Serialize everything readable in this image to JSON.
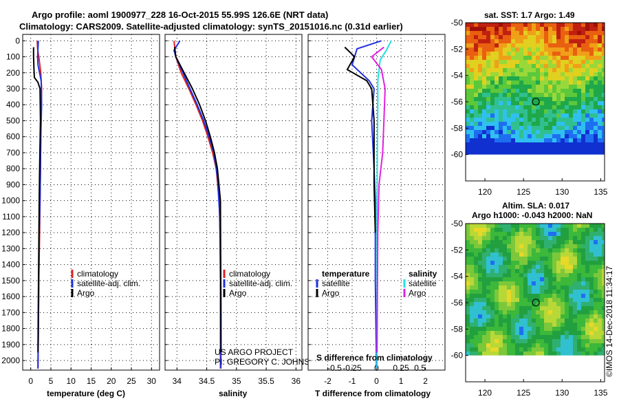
{
  "title_line1": "Argo profile: aoml 1900977_228 16-Oct-2015 55.99S 126.6E (NRT data)",
  "title_line2": "Climatology: CARS2009. Satellite-adjusted climatology: synTS_20151016.nc (0.31d earlier)",
  "credit_line1": "US ARGO PROJECT",
  "credit_line2": "PI: GREGORY C. JOHNSON",
  "watermark": "©IMOS 14-Dec-2018 11:34:17",
  "colors": {
    "climatology": "#e02020",
    "satellite": "#1f2fe0",
    "argo": "#000000",
    "salinity_sat": "#22e0e0",
    "salinity_argo": "#e020e0"
  },
  "chart_data": [
    {
      "type": "line",
      "name": "temperature-profile",
      "xlabel": "temperature (deg C)",
      "ylabel": "",
      "xlim": [
        -2,
        32
      ],
      "ylim": [
        2060,
        -40
      ],
      "xticks": [
        0,
        5,
        10,
        15,
        20,
        25,
        30
      ],
      "yticks": [
        0,
        100,
        200,
        300,
        400,
        500,
        600,
        700,
        800,
        900,
        1000,
        1100,
        1200,
        1300,
        1400,
        1500,
        1600,
        1700,
        1800,
        1900,
        2000
      ],
      "legend": [
        "climatology",
        "satellite-adj. clim.",
        "Argo"
      ],
      "series": [
        {
          "name": "climatology",
          "color": "#e02020",
          "x": [
            1.6,
            1.7,
            2.0,
            2.5,
            2.7,
            2.6,
            2.5,
            2.4,
            2.3,
            2.2,
            2.0,
            1.9,
            1.8
          ],
          "y": [
            0,
            50,
            100,
            200,
            300,
            400,
            600,
            800,
            1000,
            1200,
            1500,
            1800,
            2050
          ]
        },
        {
          "name": "satellite-adj. clim.",
          "color": "#1f2fe0",
          "x": [
            1.9,
            1.8,
            1.7,
            1.8,
            2.6,
            2.7,
            2.5,
            2.4,
            2.3,
            2.1,
            2.0,
            1.9,
            1.8
          ],
          "y": [
            0,
            50,
            100,
            150,
            250,
            400,
            600,
            800,
            1000,
            1200,
            1500,
            1800,
            2050
          ]
        },
        {
          "name": "Argo",
          "color": "#000000",
          "x": [
            0.7,
            0.7,
            0.8,
            0.9,
            1.8,
            2.3,
            2.4,
            2.2,
            2.1,
            2.0,
            1.9,
            1.8
          ],
          "y": [
            40,
            100,
            180,
            230,
            260,
            300,
            500,
            800,
            1000,
            1300,
            1600,
            1950
          ]
        }
      ]
    },
    {
      "type": "line",
      "name": "salinity-profile",
      "xlabel": "salinity",
      "xlim": [
        33.8,
        36.1
      ],
      "ylim": [
        2060,
        -40
      ],
      "xticks": [
        34,
        34.5,
        35,
        35.5,
        36
      ],
      "legend": [
        "climatology",
        "satellite-adj. clim.",
        "Argo"
      ],
      "series": [
        {
          "name": "climatology",
          "color": "#e02020",
          "x": [
            33.95,
            33.98,
            34.07,
            34.2,
            34.32,
            34.43,
            34.52,
            34.6,
            34.66,
            34.71,
            34.73,
            34.74,
            34.74
          ],
          "y": [
            0,
            100,
            200,
            300,
            400,
            500,
            600,
            700,
            800,
            1000,
            1300,
            1600,
            2050
          ]
        },
        {
          "name": "satellite-adj. clim.",
          "color": "#1f2fe0",
          "x": [
            34.05,
            33.95,
            33.98,
            34.1,
            34.22,
            34.34,
            34.45,
            34.54,
            34.62,
            34.68,
            34.72,
            34.73,
            34.73
          ],
          "y": [
            0,
            60,
            100,
            200,
            300,
            400,
            500,
            600,
            700,
            850,
            1100,
            1500,
            2050
          ]
        },
        {
          "name": "Argo",
          "color": "#000000",
          "x": [
            33.96,
            33.98,
            34.12,
            34.26,
            34.38,
            34.48,
            34.56,
            34.63,
            34.68,
            34.73,
            34.74
          ],
          "y": [
            40,
            100,
            200,
            300,
            400,
            500,
            600,
            700,
            800,
            1000,
            1950
          ]
        }
      ]
    },
    {
      "type": "line",
      "name": "difference-profile",
      "xlabel": "T difference from climatology",
      "x2label": "S difference from climatology",
      "xlim": [
        -2.8,
        2.8
      ],
      "ylim": [
        2060,
        -40
      ],
      "xticks": [
        -2,
        -1,
        0,
        1,
        2
      ],
      "x2ticks": [
        "-0.5",
        "-0.25",
        "0",
        "0.25",
        "0.5"
      ],
      "legend_headers": [
        "temperature",
        "salinity"
      ],
      "legend": [
        "satellite",
        "Argo",
        "satellite",
        "Argo"
      ],
      "series": [
        {
          "name": "temperature satellite",
          "color": "#1f2fe0",
          "x": [
            0.2,
            -0.8,
            -1.0,
            -0.3,
            -0.1,
            -0.2,
            -0.1,
            -0.05,
            -0.05,
            0.0
          ],
          "y": [
            0,
            50,
            150,
            250,
            300,
            500,
            800,
            1000,
            1500,
            2050
          ]
        },
        {
          "name": "temperature Argo",
          "color": "#000000",
          "x": [
            -1.3,
            -0.9,
            -1.2,
            -0.4,
            -0.2,
            -0.1,
            -0.1,
            -0.05
          ],
          "y": [
            40,
            100,
            180,
            250,
            300,
            500,
            900,
            1200
          ]
        },
        {
          "name": "salinity satellite",
          "color": "#22e0e0",
          "x": [
            0.6,
            0.4,
            0.15,
            0.05,
            0.05,
            0.03,
            0.02,
            0.02
          ],
          "y": [
            0,
            60,
            120,
            250,
            400,
            700,
            1000,
            2050
          ]
        },
        {
          "name": "salinity Argo",
          "color": "#e020e0",
          "x": [
            0.3,
            -0.2,
            0.2,
            0.35,
            0.3,
            0.25,
            0.1,
            0.05,
            0.02
          ],
          "y": [
            40,
            100,
            180,
            300,
            500,
            700,
            900,
            1200,
            1950
          ]
        }
      ]
    },
    {
      "type": "heatmap",
      "name": "sst-map",
      "title": "sat. SST: 1.7 Argo: 1.49",
      "xlim": [
        117.5,
        135.5
      ],
      "ylim": [
        -62,
        -50
      ],
      "xticks": [
        120,
        125,
        130,
        135
      ],
      "yticks": [
        -50,
        -52,
        -54,
        -56,
        -58,
        -60
      ],
      "marker": {
        "lon": 126.6,
        "lat": -55.99
      }
    },
    {
      "type": "heatmap",
      "name": "sla-map",
      "title_line1": "Altim. SLA: 0.017",
      "title_line2": "Argo h1000: -0.043 h2000: NaN",
      "xlim": [
        117.5,
        135.5
      ],
      "ylim": [
        -62,
        -50
      ],
      "xticks": [
        120,
        125,
        130,
        135
      ],
      "yticks": [
        -50,
        -52,
        -54,
        -56,
        -58,
        -60
      ],
      "marker": {
        "lon": 126.6,
        "lat": -55.99
      }
    }
  ]
}
